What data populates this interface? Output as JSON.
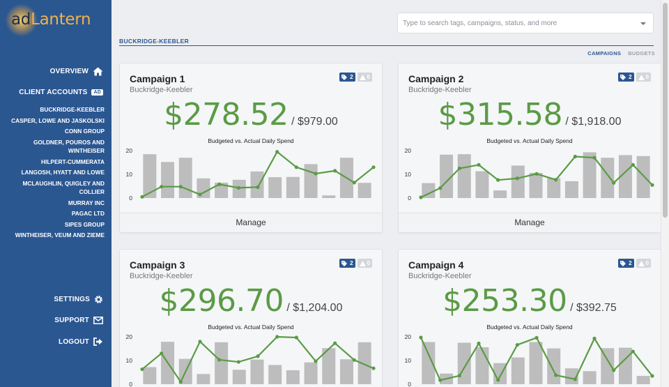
{
  "brand": {
    "ad": "ad",
    "lantern": "Lantern"
  },
  "nav": {
    "overview": "OVERVIEW",
    "client_accounts": "CLIENT ACCOUNTS",
    "client_badge": "AD",
    "clients": [
      "BUCKRIDGE-KEEBLER",
      "CASPER, LOWE AND JASKOLSKI",
      "CONN GROUP",
      "GOLDNER, POUROS AND WINTHEISER",
      "HILPERT-CUMMERATA",
      "LANGOSH, HYATT AND LOWE",
      "MCLAUGHLIN, QUIGLEY AND COLLIER",
      "MURRAY INC",
      "PAGAC LTD",
      "SIPES GROUP",
      "WINTHEISER, VEUM AND ZIEME"
    ],
    "settings": "SETTINGS",
    "support": "SUPPORT",
    "logout": "LOGOUT"
  },
  "search": {
    "placeholder": "Type to search tags, campaigns, status, and more"
  },
  "breadcrumb": "BUCKRIDGE-KEEBLER",
  "tabs": {
    "campaigns": "CAMPAIGNS",
    "budgets": "BUDGETS"
  },
  "colors": {
    "sidebar": "#2b5791",
    "accent": "#2b5791",
    "spend": "#5a9b45",
    "bar": "#bdbdbd"
  },
  "cards": [
    {
      "title": "Campaign 1",
      "client": "Buckridge-Keebler",
      "amount": "$278.52",
      "budget": "/ $979.00",
      "tags": "2",
      "warnings": "0",
      "manage": "Manage"
    },
    {
      "title": "Campaign 2",
      "client": "Buckridge-Keebler",
      "amount": "$315.58",
      "budget": "/ $1,918.00",
      "tags": "2",
      "warnings": "0",
      "manage": "Manage"
    },
    {
      "title": "Campaign 3",
      "client": "Buckridge-Keebler",
      "amount": "$296.70",
      "budget": "/ $1,204.00",
      "tags": "2",
      "warnings": "0",
      "manage": "Manage"
    },
    {
      "title": "Campaign 4",
      "client": "Buckridge-Keebler",
      "amount": "$253.30",
      "budget": "/ $392.75",
      "tags": "2",
      "warnings": "0",
      "manage": "Manage"
    }
  ],
  "chart_data": [
    {
      "type": "bar",
      "title": "Budgeted vs. Actual Daily Spend",
      "ylim": [
        0,
        20
      ],
      "yticks": [
        0,
        10,
        20
      ],
      "series": [
        {
          "type": "bar",
          "values": [
            18.5,
            15.2,
            17,
            8.3,
            6.5,
            7.7,
            11.2,
            8.8,
            8.9,
            14.3,
            1.1,
            17,
            6.4
          ]
        },
        {
          "type": "line",
          "values": [
            0.5,
            4.8,
            4.8,
            1.5,
            5.8,
            4.3,
            4.6,
            19.5,
            13,
            10.3,
            11.5,
            6.5,
            13
          ]
        }
      ]
    },
    {
      "type": "bar",
      "title": "Budgeted vs. Actual Daily Spend",
      "ylim": [
        0,
        20
      ],
      "yticks": [
        0,
        10,
        20
      ],
      "series": [
        {
          "type": "bar",
          "values": [
            6.3,
            18.3,
            18.5,
            11.3,
            3.2,
            13.7,
            10.6,
            8.4,
            7.1,
            19.3,
            17,
            18.1,
            17.7
          ]
        },
        {
          "type": "line",
          "values": [
            0.3,
            4.2,
            12.5,
            14,
            7.6,
            8.3,
            10.2,
            7.7,
            17.5,
            17,
            6.4,
            14,
            5.5
          ]
        }
      ]
    },
    {
      "type": "bar",
      "title": "Budgeted vs. Actual Daily Spend",
      "ylim": [
        0,
        20
      ],
      "yticks": [
        0,
        10,
        20
      ],
      "series": [
        {
          "type": "bar",
          "values": [
            7.2,
            17.9,
            10.7,
            4.3,
            17.7,
            6.1,
            10.4,
            8.1,
            5.9,
            9.2,
            15.2,
            10.5,
            17.7
          ]
        },
        {
          "type": "line",
          "values": [
            6.3,
            13,
            1,
            18,
            10.3,
            9.4,
            11.8,
            20,
            19.7,
            9.7,
            17.3,
            10.2,
            6.7
          ]
        }
      ]
    },
    {
      "type": "bar",
      "title": "Budgeted vs. Actual Daily Spend",
      "ylim": [
        0,
        20
      ],
      "yticks": [
        0,
        10,
        20
      ],
      "series": [
        {
          "type": "bar",
          "values": [
            17.8,
            4.5,
            17.5,
            15.6,
            8.9,
            11.3,
            17.8,
            15.1,
            6.7,
            5.5,
            15.2,
            15.4,
            3.5
          ]
        },
        {
          "type": "line",
          "values": [
            19.7,
            1.7,
            3.6,
            17.2,
            1.8,
            16.6,
            19.6,
            3.8,
            2.1,
            19.3,
            5.9,
            13.8,
            3.5
          ]
        }
      ]
    }
  ]
}
